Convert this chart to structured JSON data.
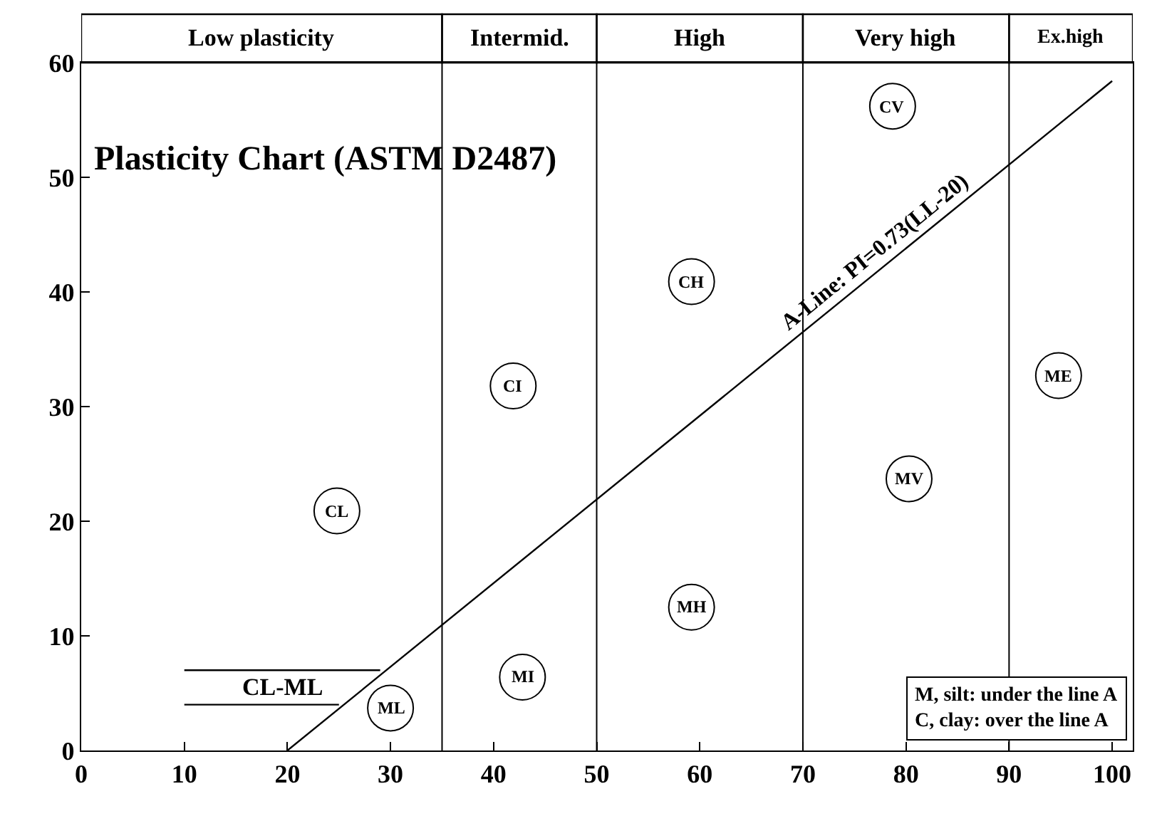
{
  "chart_data": {
    "type": "line",
    "title": "Plasticity Chart (ASTM D2487)",
    "xlim": [
      0,
      102
    ],
    "xticks": [
      0,
      10,
      20,
      30,
      40,
      50,
      60,
      70,
      80,
      90,
      100
    ],
    "ylim": [
      0,
      60
    ],
    "yticks": [
      0,
      10,
      20,
      30,
      40,
      50,
      60
    ],
    "legend": false,
    "marker": "none",
    "line_style": "solid",
    "series": [
      {
        "color": "#000000",
        "x": [
          20,
          100
        ],
        "values": [
          0,
          58.4
        ]
      },
      {
        "name": "CL-ML",
        "color": "#000000",
        "x": [
          10,
          29,
          25,
          10,
          25
        ],
        "values": [
          7,
          7,
          null,
          4,
          4
        ]
      },
      {
        "type": "scatter",
        "color": "#000000",
        "marker": "circle",
        "x": [
          78.7,
          59.2,
          41.9,
          24.8,
          94.8,
          80.3,
          59.2,
          42.8,
          30.0
        ],
        "values": [
          56.2,
          40.9,
          31.8,
          20.9,
          32.7,
          23.7,
          12.5,
          6.4,
          3.7
        ]
      }
    ],
    "ref_lines": [
      {
        "axis": "x",
        "value": 35,
        "color": "#000000"
      },
      {
        "axis": "x",
        "value": 50,
        "color": "#000000"
      },
      {
        "axis": "x",
        "value": 70,
        "color": "#000000"
      },
      {
        "axis": "x",
        "value": 90,
        "color": "#000000"
      }
    ],
    "annotations": [
      "Low plasticity",
      "Intermid.",
      "High",
      "Very high",
      "Ex.high",
      {
        "text": "CV",
        "x": 78.7,
        "y": 56.2
      },
      {
        "text": "CH",
        "x": 59.2,
        "y": 40.9
      },
      {
        "text": "CI",
        "x": 41.9,
        "y": 31.8
      },
      {
        "text": "CL",
        "x": 24.8,
        "y": 20.9
      },
      {
        "text": "ME",
        "x": 94.8,
        "y": 32.7
      },
      {
        "text": "MV",
        "x": 80.3,
        "y": 23.7
      },
      {
        "text": "MH",
        "x": 59.2,
        "y": 12.5
      },
      {
        "text": "MI",
        "x": 42.8,
        "y": 6.4
      },
      {
        "text": "ML",
        "x": 30.0,
        "y": 3.7
      },
      {
        "text": "A-Line: PI=0.73(LL-20)",
        "x": 78,
        "y": 42.3
      },
      "M, silt: under the line A\nC, clay: over the line A"
    ]
  }
}
